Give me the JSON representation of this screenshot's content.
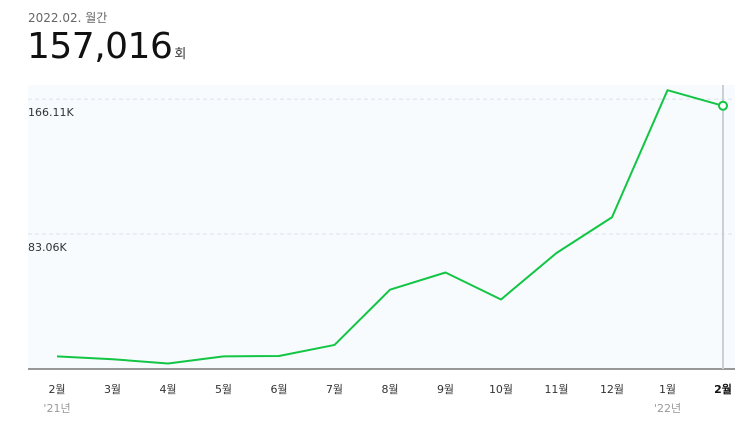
{
  "summary": {
    "period": "2022.02. 월간",
    "value": "157,016",
    "unit": "회"
  },
  "colors": {
    "line": "#13c544",
    "plot_bg": "#f7fbfe",
    "grid": "#d9e4ec",
    "axis": "#333333",
    "cursor": "#c9d0d6"
  },
  "chart_data": {
    "type": "line",
    "categories": [
      "2월",
      "3월",
      "4월",
      "5월",
      "6월",
      "7월",
      "8월",
      "9월",
      "10월",
      "11월",
      "12월",
      "1월",
      "2월"
    ],
    "series": [
      {
        "values": [
          19500,
          15000,
          8500,
          19500,
          20000,
          37000,
          122000,
          148500,
          107000,
          178500,
          233500,
          429000,
          405000
        ]
      }
    ],
    "y_ticks": [
      {
        "value": 415276,
        "label": "166.11K"
      },
      {
        "value": 207638,
        "label": "83.06K"
      }
    ],
    "year_labels": [
      {
        "index": 0,
        "label": "'21년"
      },
      {
        "index": 11,
        "label": "'22년"
      }
    ],
    "ylim": [
      0,
      437000
    ],
    "highlight_index": 12,
    "grid": true
  }
}
